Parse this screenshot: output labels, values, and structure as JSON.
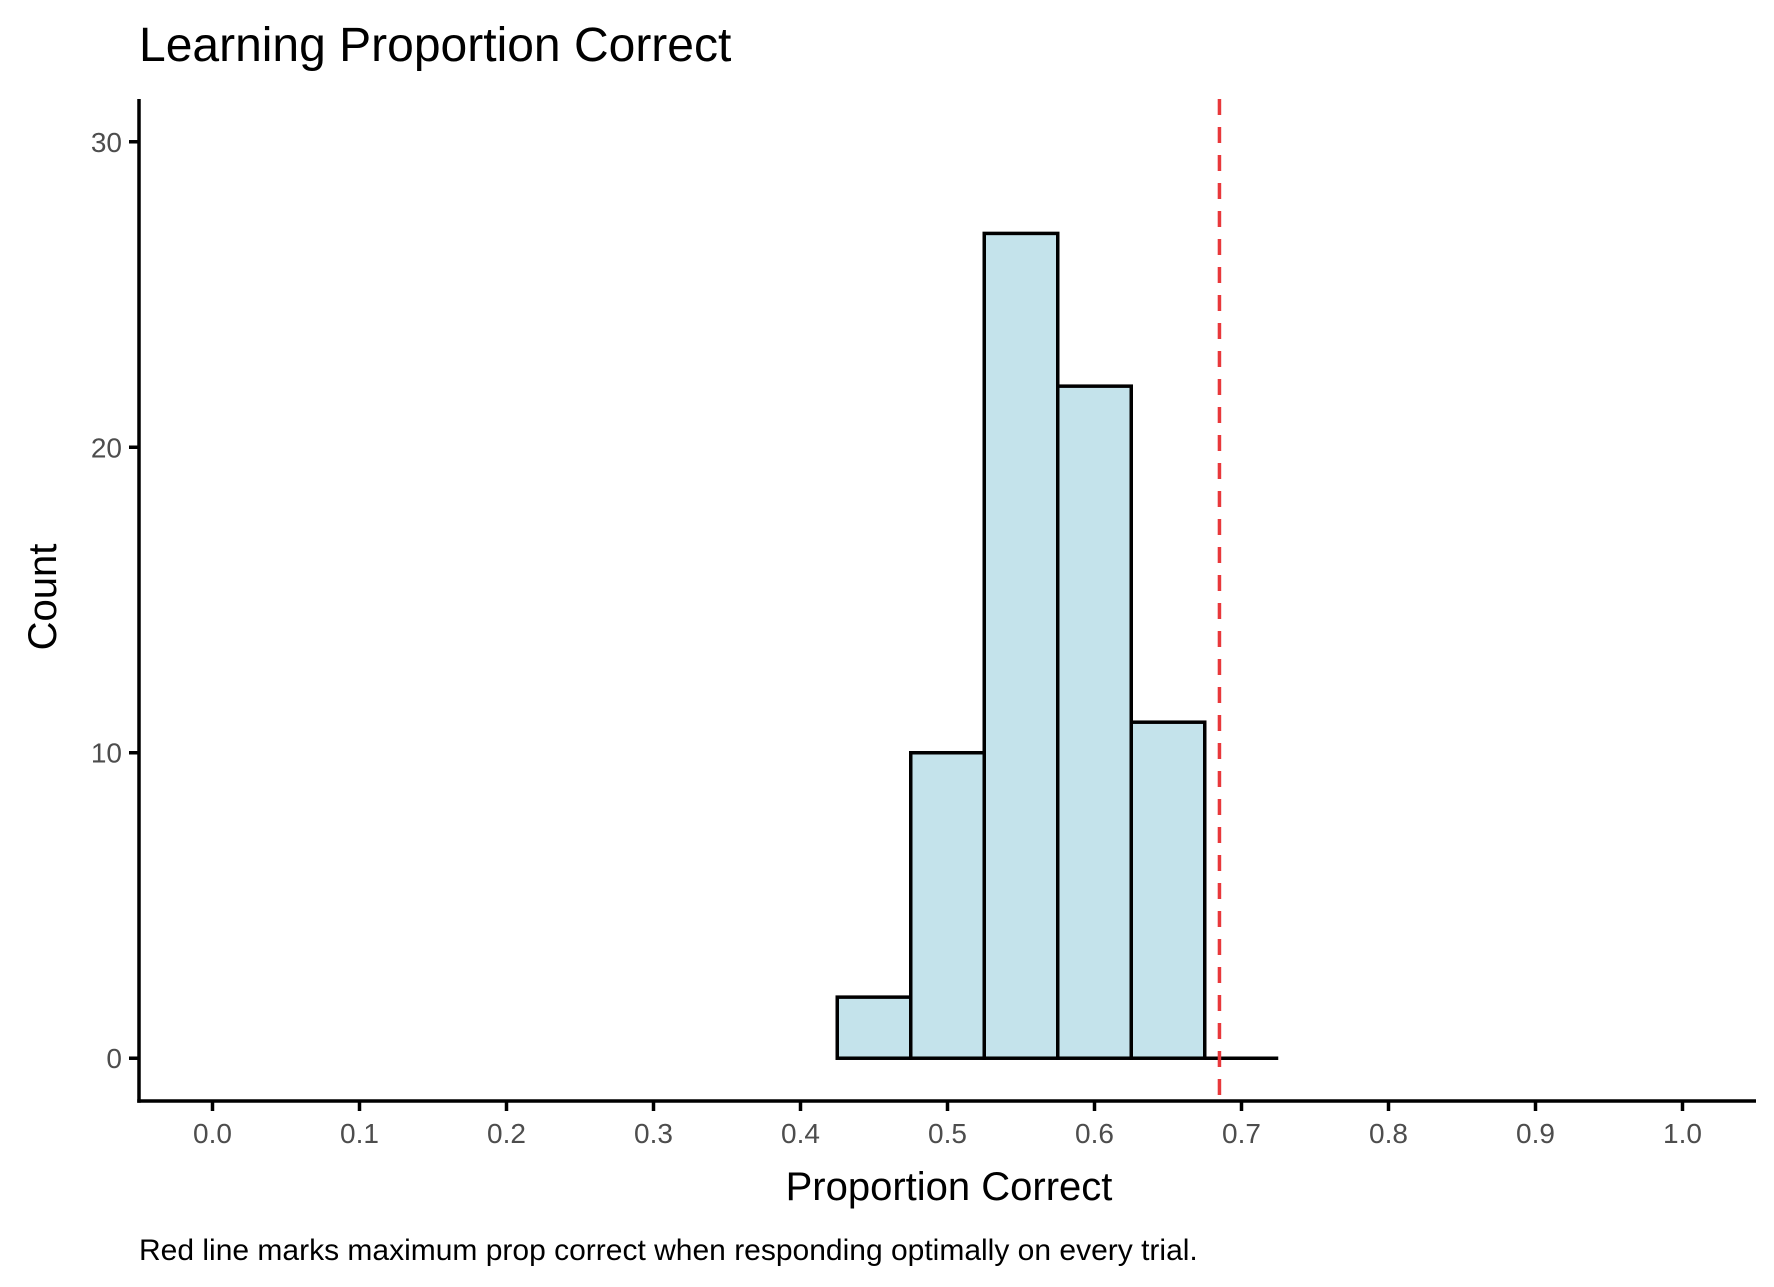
{
  "chart_data": {
    "type": "bar",
    "title": "Learning Proportion Correct",
    "xlabel": "Proportion Correct",
    "ylabel": "Count",
    "caption": "Red line marks maximum prop correct when responding optimally on every trial.",
    "xlim": [
      -0.05,
      1.05
    ],
    "ylim": [
      -1.4,
      31.4
    ],
    "x_ticks": [
      0.0,
      0.1,
      0.2,
      0.3,
      0.4,
      0.5,
      0.6,
      0.7,
      0.8,
      0.9,
      1.0
    ],
    "x_tick_labels": [
      "0.0",
      "0.1",
      "0.2",
      "0.3",
      "0.4",
      "0.5",
      "0.6",
      "0.7",
      "0.8",
      "0.9",
      "1.0"
    ],
    "y_ticks": [
      0,
      10,
      20,
      30
    ],
    "y_tick_labels": [
      "0",
      "10",
      "20",
      "30"
    ],
    "bins": [
      {
        "start": 0.425,
        "end": 0.475,
        "count": 2
      },
      {
        "start": 0.475,
        "end": 0.525,
        "count": 10
      },
      {
        "start": 0.525,
        "end": 0.575,
        "count": 27
      },
      {
        "start": 0.575,
        "end": 0.625,
        "count": 22
      },
      {
        "start": 0.625,
        "end": 0.675,
        "count": 11
      },
      {
        "start": 0.675,
        "end": 0.725,
        "count": 0
      }
    ],
    "reference_line": {
      "x": 0.685,
      "color": "#e8383b",
      "style": "dashed"
    },
    "bar_fill": "#c4e3eb",
    "bar_outline": "#000000",
    "grid": false,
    "legend": "none"
  }
}
